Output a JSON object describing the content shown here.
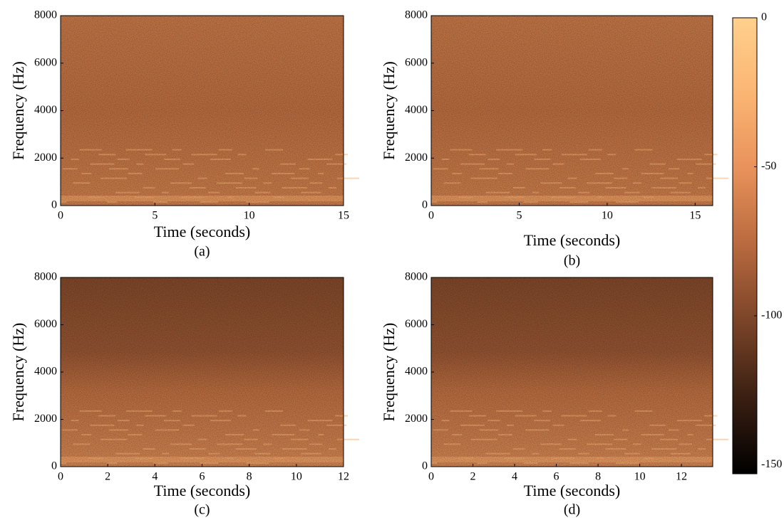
{
  "chart_data": [
    {
      "type": "spectrogram",
      "label": "(a)",
      "xlabel": "Time (seconds)",
      "ylabel": "Frequency (Hz)",
      "xlim": [
        0,
        15
      ],
      "xticks": [
        0,
        5,
        10,
        15
      ],
      "ylim": [
        0,
        8000
      ],
      "yticks": [
        0,
        2000,
        4000,
        6000,
        8000
      ]
    },
    {
      "type": "spectrogram",
      "label": "(b)",
      "xlabel": "Time (seconds)",
      "ylabel": "Frequency (Hz)",
      "xlim": [
        0,
        16
      ],
      "xticks": [
        0,
        5,
        10,
        15
      ],
      "ylim": [
        0,
        8000
      ],
      "yticks": [
        0,
        2000,
        4000,
        6000,
        8000
      ]
    },
    {
      "type": "spectrogram",
      "label": "(c)",
      "xlabel": "Time (seconds)",
      "ylabel": "Frequency (Hz)",
      "xlim": [
        0,
        12
      ],
      "xticks": [
        0,
        2,
        4,
        6,
        8,
        10,
        12
      ],
      "ylim": [
        0,
        8000
      ],
      "yticks": [
        0,
        2000,
        4000,
        6000,
        8000
      ]
    },
    {
      "type": "spectrogram",
      "label": "(d)",
      "xlabel": "Time (seconds)",
      "ylabel": "Frequency (Hz)",
      "xlim": [
        0,
        13.5
      ],
      "xticks": [
        0,
        2,
        4,
        6,
        8,
        10,
        12
      ],
      "ylim": [
        0,
        8000
      ],
      "yticks": [
        0,
        2000,
        4000,
        6000,
        8000
      ]
    },
    {
      "type": "colorbar",
      "ylim": [
        -153,
        0
      ],
      "yticks": [
        0,
        -50,
        -100,
        -150
      ],
      "colormap": [
        "#000000",
        "#3a1f12",
        "#7a4428",
        "#b8693e",
        "#e8915a",
        "#fbb573",
        "#ffd08c"
      ]
    }
  ]
}
